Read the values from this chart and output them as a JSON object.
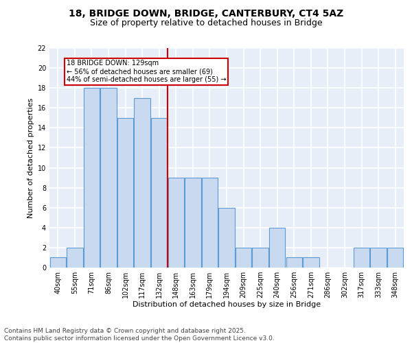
{
  "title1": "18, BRIDGE DOWN, BRIDGE, CANTERBURY, CT4 5AZ",
  "title2": "Size of property relative to detached houses in Bridge",
  "xlabel": "Distribution of detached houses by size in Bridge",
  "ylabel": "Number of detached properties",
  "categories": [
    "40sqm",
    "55sqm",
    "71sqm",
    "86sqm",
    "102sqm",
    "117sqm",
    "132sqm",
    "148sqm",
    "163sqm",
    "179sqm",
    "194sqm",
    "209sqm",
    "225sqm",
    "240sqm",
    "256sqm",
    "271sqm",
    "286sqm",
    "302sqm",
    "317sqm",
    "333sqm",
    "348sqm"
  ],
  "values": [
    1,
    2,
    18,
    18,
    15,
    17,
    15,
    9,
    9,
    9,
    6,
    2,
    2,
    4,
    1,
    1,
    0,
    0,
    2,
    2,
    2
  ],
  "bar_color": "#c9d9f0",
  "bar_edge_color": "#5b9bd5",
  "vline_x_index": 6,
  "vline_color": "#cc0000",
  "annotation_box_text": "18 BRIDGE DOWN: 129sqm\n← 56% of detached houses are smaller (69)\n44% of semi-detached houses are larger (55) →",
  "annotation_box_color": "#cc0000",
  "ylim": [
    0,
    22
  ],
  "yticks": [
    0,
    2,
    4,
    6,
    8,
    10,
    12,
    14,
    16,
    18,
    20,
    22
  ],
  "bg_color": "#e8eef8",
  "grid_color": "#ffffff",
  "footer_text": "Contains HM Land Registry data © Crown copyright and database right 2025.\nContains public sector information licensed under the Open Government Licence v3.0.",
  "title_fontsize": 10,
  "subtitle_fontsize": 9,
  "axis_label_fontsize": 8,
  "tick_fontsize": 7,
  "footer_fontsize": 6.5
}
